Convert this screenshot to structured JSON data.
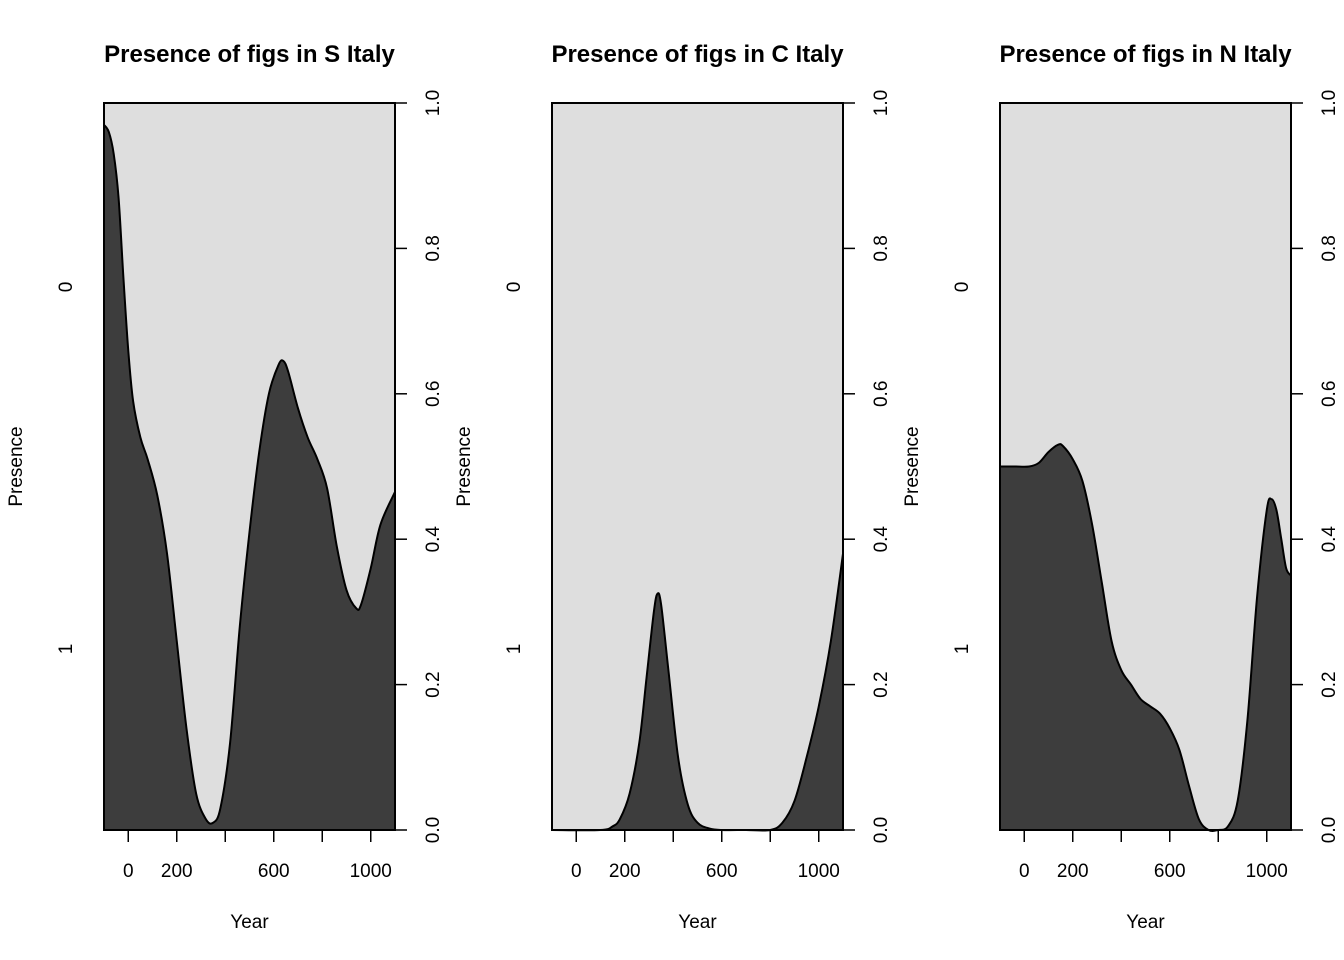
{
  "colors": {
    "background": "#dedede",
    "fill": "#3d3d3d",
    "line": "#000000"
  },
  "chart_data": [
    {
      "type": "area",
      "title": "Presence of figs in S Italy",
      "xlabel": "Year",
      "ylabel": "Presence",
      "xlim": [
        -100,
        1100
      ],
      "x_ticks": [
        0,
        200,
        400,
        600,
        800,
        1000
      ],
      "x_tick_labels": [
        "0",
        "200",
        "",
        "600",
        "",
        "1000"
      ],
      "left_axis_labels": [
        "0",
        "1"
      ],
      "right_axis": {
        "ylim": [
          0,
          1
        ],
        "ticks": [
          "0.0",
          "0.2",
          "0.4",
          "0.6",
          "0.8",
          "1.0"
        ]
      },
      "series": [
        {
          "x": [
            -100,
            -80,
            -60,
            -40,
            -20,
            0,
            20,
            50,
            80,
            120,
            160,
            200,
            240,
            280,
            320,
            350,
            380,
            420,
            460,
            500,
            540,
            580,
            620,
            640,
            660,
            700,
            740,
            780,
            820,
            860,
            900,
            940,
            960,
            1000,
            1040,
            1100
          ],
          "y": [
            0.97,
            0.96,
            0.93,
            0.87,
            0.76,
            0.66,
            0.59,
            0.54,
            0.51,
            0.46,
            0.38,
            0.26,
            0.14,
            0.05,
            0.015,
            0.01,
            0.03,
            0.12,
            0.28,
            0.41,
            0.52,
            0.6,
            0.64,
            0.645,
            0.63,
            0.58,
            0.54,
            0.51,
            0.47,
            0.39,
            0.33,
            0.305,
            0.31,
            0.36,
            0.42,
            0.465
          ]
        }
      ]
    },
    {
      "type": "area",
      "title": "Presence of figs in C Italy",
      "xlabel": "Year",
      "ylabel": "Presence",
      "xlim": [
        -100,
        1100
      ],
      "x_ticks": [
        0,
        200,
        400,
        600,
        800,
        1000
      ],
      "x_tick_labels": [
        "0",
        "200",
        "",
        "600",
        "",
        "1000"
      ],
      "left_axis_labels": [
        "0",
        "1"
      ],
      "right_axis": {
        "ylim": [
          0,
          1
        ],
        "ticks": [
          "0.0",
          "0.2",
          "0.4",
          "0.6",
          "0.8",
          "1.0"
        ]
      },
      "series": [
        {
          "x": [
            -100,
            100,
            150,
            180,
            220,
            260,
            290,
            320,
            335,
            350,
            380,
            420,
            460,
            500,
            550,
            600,
            700,
            800,
            850,
            900,
            950,
            1000,
            1050,
            1100
          ],
          "y": [
            0,
            0,
            0.005,
            0.015,
            0.05,
            0.12,
            0.21,
            0.3,
            0.325,
            0.31,
            0.22,
            0.1,
            0.035,
            0.01,
            0.002,
            0,
            0,
            0,
            0.01,
            0.04,
            0.1,
            0.17,
            0.26,
            0.38
          ]
        }
      ]
    },
    {
      "type": "area",
      "title": "Presence of figs in N Italy",
      "xlabel": "Year",
      "ylabel": "Presence",
      "xlim": [
        -100,
        1100
      ],
      "x_ticks": [
        0,
        200,
        400,
        600,
        800,
        1000
      ],
      "x_tick_labels": [
        "0",
        "200",
        "",
        "600",
        "",
        "1000"
      ],
      "left_axis_labels": [
        "0",
        "1"
      ],
      "right_axis": {
        "ylim": [
          0,
          1
        ],
        "ticks": [
          "0.0",
          "0.2",
          "0.4",
          "0.6",
          "0.8",
          "1.0"
        ]
      },
      "series": [
        {
          "x": [
            -100,
            -40,
            20,
            60,
            100,
            140,
            160,
            200,
            240,
            280,
            320,
            360,
            400,
            440,
            480,
            520,
            560,
            600,
            640,
            680,
            720,
            760,
            800,
            840,
            880,
            920,
            960,
            1000,
            1020,
            1040,
            1060,
            1080,
            1100
          ],
          "y": [
            0.5,
            0.5,
            0.5,
            0.505,
            0.52,
            0.53,
            0.528,
            0.51,
            0.48,
            0.42,
            0.34,
            0.26,
            0.22,
            0.2,
            0.18,
            0.17,
            0.16,
            0.14,
            0.11,
            0.06,
            0.015,
            0.0,
            0.0,
            0.005,
            0.04,
            0.15,
            0.32,
            0.44,
            0.455,
            0.44,
            0.4,
            0.36,
            0.35
          ]
        }
      ]
    }
  ]
}
